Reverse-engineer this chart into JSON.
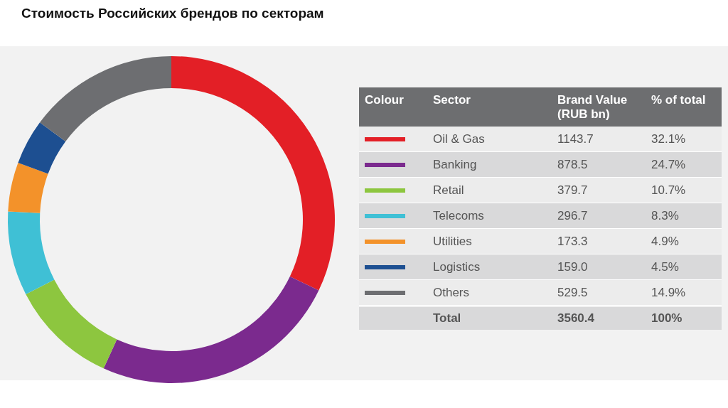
{
  "chart_data": {
    "type": "donut",
    "title": "Стоимость Российских брендов по секторам",
    "categories": [
      "Oil & Gas",
      "Banking",
      "Retail",
      "Telecoms",
      "Utilities",
      "Logistics",
      "Others"
    ],
    "values": [
      1143.7,
      878.5,
      379.7,
      296.7,
      173.3,
      159.0,
      529.5
    ],
    "colors": [
      "#e31f26",
      "#7b2a8e",
      "#8dc63f",
      "#3fc0d5",
      "#f3922a",
      "#1d4f91",
      "#6d6e71"
    ],
    "value_labels": [
      "1143.7",
      "878.5",
      "379.7",
      "296.7",
      "173.3",
      "159.0",
      "529.5"
    ],
    "totals": [
      "3560.4",
      "100%"
    ],
    "annotations": [
      "Colour",
      "Sector",
      "Brand Value (RUB bn)",
      "% of total",
      "Total",
      "32.1%",
      "24.7%",
      "10.7%",
      "8.3%",
      "4.9%",
      "4.5%",
      "14.9%"
    ],
    "legend": "right"
  }
}
